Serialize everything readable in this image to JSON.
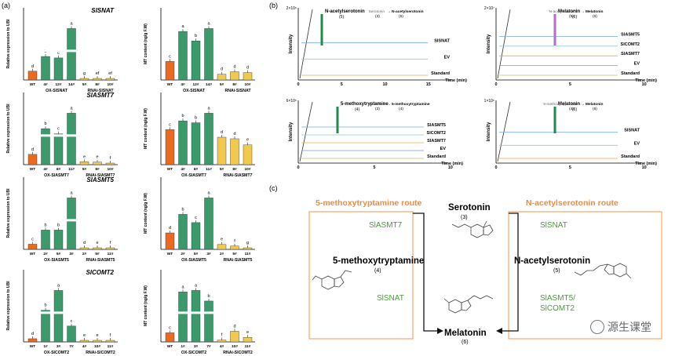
{
  "panel_labels": {
    "a": "(a)",
    "b": "(b)",
    "c": "(c)"
  },
  "colors": {
    "wt": "#ec6a1f",
    "ox": "#3a9a6c",
    "rnai": "#f2c94c",
    "route": "#f08a3c",
    "enzyme": "#4c9a3b"
  },
  "panel_a": {
    "ylabel_rel": "Relative expression to UBI",
    "ylabel_mt": "MT content (ng/g F.W)",
    "rows": [
      {
        "gene": "SlSNAT",
        "ox_label": "OX-SlSNAT",
        "rnai_label": "RNAi-SlSNAT",
        "lines": [
          "WT",
          "4#",
          "12#",
          "14#",
          "5#",
          "8#",
          "10#"
        ],
        "expr_letters": [
          "d",
          "b",
          "c",
          "a",
          "g",
          "ef",
          "ef"
        ],
        "mt_letters": [
          "c",
          "a",
          "b",
          "a",
          "d",
          "d",
          "d"
        ]
      },
      {
        "gene": "SlASMT7",
        "ox_label": "OX-SlASMT7",
        "rnai_label": "RNAi-SlASMT7",
        "lines": [
          "WT",
          "4#",
          "6#",
          "11#",
          "5#",
          "8#",
          "10#"
        ],
        "expr_letters": [
          "d",
          "b",
          "c",
          "a",
          "e",
          "e",
          "f"
        ],
        "mt_letters": [
          "c",
          "b",
          "b",
          "a",
          "d",
          "d",
          "e"
        ]
      },
      {
        "gene": "SlASMT5",
        "ox_label": "OX-SlASMT5",
        "rnai_label": "RNAi-SlASMT5",
        "lines": [
          "WT",
          "2#",
          "5#",
          "3#",
          "2#",
          "5#",
          "11#"
        ],
        "expr_letters": [
          "c",
          "b",
          "b",
          "a",
          "d",
          "e",
          "f"
        ],
        "mt_letters": [
          "d",
          "b",
          "c",
          "a",
          "e",
          "f",
          "g"
        ]
      },
      {
        "gene": "SlCOMT2",
        "ox_label": "OX-SlCOMT2",
        "rnai_label": "RNAi-SlCOMT2",
        "lines": [
          "WT",
          "1#",
          "3#",
          "7#",
          "4#",
          "10#",
          "11#"
        ],
        "expr_letters": [
          "d",
          "b",
          "a",
          "c",
          "e",
          "e",
          "f"
        ],
        "mt_letters": [
          "c",
          "a",
          "a",
          "b",
          "f",
          "d",
          "e"
        ]
      }
    ]
  },
  "panel_b": {
    "xlabel": "Time (min)",
    "ylabel": "Intensity",
    "charts": [
      {
        "ymax": "2×10⁶",
        "peak": "N-acetylserotonin",
        "peak_num": "(5)",
        "reaction": [
          "Serotonin",
          "N-acetylserotonin"
        ],
        "reaction_nums": [
          "(3)",
          "(5)"
        ],
        "traces": [
          "SlSNAT",
          "EV",
          "Standard"
        ],
        "ticks": [
          "0",
          "5",
          "10",
          "15"
        ]
      },
      {
        "ymax": "2×10⁷",
        "peak": "Melatonin",
        "peak_num": "(6)",
        "reaction": [
          "N-acetylserotonin",
          "Melatonin"
        ],
        "reaction_nums": [
          "(5)",
          "(6)"
        ],
        "traces": [
          "SlASMT5",
          "SlCOMT2",
          "SlASMT7",
          "EV",
          "Standard"
        ],
        "ticks": [
          "0",
          "5",
          "10"
        ]
      },
      {
        "ymax": "6×10⁵",
        "peak": "5-methoxytryptamine",
        "peak_num": "(4)",
        "reaction": [
          "Serotonin",
          "5-methoxytryptamine"
        ],
        "reaction_nums": [
          "(3)",
          "(4)"
        ],
        "traces": [
          "SlASMT5",
          "SlCOMT2",
          "SlASMT7",
          "EV",
          "Standard"
        ],
        "ticks": [
          "0",
          "5",
          "10"
        ]
      },
      {
        "ymax": "1×10⁶",
        "peak": "Melatonin",
        "peak_num": "(6)",
        "reaction": [
          "5-methoxytryptamine",
          "Melatonin"
        ],
        "reaction_nums": [
          "(4)",
          "(6)"
        ],
        "traces": [
          "SlSNAT",
          "EV",
          "Standard"
        ],
        "ticks": [
          "0",
          "5",
          "10"
        ]
      }
    ]
  },
  "panel_c": {
    "left_route": "5-methoxytryptamine route",
    "right_route": "N-acetylserotonin route",
    "serotonin": "Serotonin",
    "serotonin_num": "(3)",
    "mt5": "5-methoxytryptamine",
    "mt5_num": "(4)",
    "nas": "N-acetylserotonin",
    "nas_num": "(5)",
    "melatonin": "Melatonin",
    "melatonin_num": "(6)",
    "enz_left_top": "SlASMT7",
    "enz_left_bottom": "SlSNAT",
    "enz_right_top": "SlSNAT",
    "enz_right_bottom_1": "SlASMT5/",
    "enz_right_bottom_2": "SlCOMT2",
    "watermark": "源生课堂"
  },
  "chart_data": [
    {
      "type": "bar",
      "title": "SlSNAT",
      "categories": [
        "WT",
        "4#",
        "12#",
        "14#",
        "5#",
        "8#",
        "10#"
      ],
      "series": [
        {
          "name": "",
          "values": [
            0.012,
            0.032,
            0.03,
            0.07,
            0.0012,
            0.0018,
            0.0016
          ]
        }
      ],
      "ylabel": "Relative expression to UBI"
    },
    {
      "type": "bar",
      "title": "",
      "categories": [
        "WT",
        "4#",
        "12#",
        "14#",
        "5#",
        "8#",
        "10#"
      ],
      "series": [
        {
          "name": "",
          "values": [
            4.5,
            11.8,
            9.5,
            12.5,
            1.4,
            2.0,
            1.8
          ]
        }
      ],
      "ylabel": "MT content (ng/g F.W)"
    },
    {
      "type": "bar",
      "title": "SlASMT7",
      "categories": [
        "WT",
        "4#",
        "6#",
        "11#",
        "5#",
        "8#",
        "10#"
      ],
      "series": [
        {
          "name": "",
          "values": [
            0.01,
            0.035,
            0.03,
            0.05,
            0.0028,
            0.0025,
            0.0015
          ]
        }
      ],
      "ylabel": "Relative expression to UBI"
    },
    {
      "type": "bar",
      "title": "",
      "categories": [
        "WT",
        "4#",
        "6#",
        "11#",
        "5#",
        "8#",
        "10#"
      ],
      "series": [
        {
          "name": "",
          "values": [
            9.2,
            11.5,
            11.0,
            13.5,
            7.2,
            6.8,
            5.2
          ]
        }
      ],
      "ylabel": "MT content (ng/g F.W)"
    },
    {
      "type": "bar",
      "title": "SlASMT5",
      "categories": [
        "WT",
        "2#",
        "5#",
        "3#",
        "2#",
        "5#",
        "11#"
      ],
      "series": [
        {
          "name": "",
          "values": [
            0.012,
            0.045,
            0.045,
            0.12,
            0.003,
            0.0018,
            0.0006
          ]
        }
      ],
      "ylabel": "Relative expression to UBI"
    },
    {
      "type": "bar",
      "title": "",
      "categories": [
        "WT",
        "2#",
        "5#",
        "3#",
        "2#",
        "5#",
        "11#"
      ],
      "series": [
        {
          "name": "",
          "values": [
            4.0,
            8.5,
            6.5,
            12.5,
            1.2,
            0.8,
            0.3
          ]
        }
      ],
      "ylabel": "MT content (ng/g F.W)"
    },
    {
      "type": "bar",
      "title": "SlCOMT2",
      "categories": [
        "WT",
        "1#",
        "3#",
        "7#",
        "4#",
        "10#",
        "11#"
      ],
      "series": [
        {
          "name": "",
          "values": [
            0.004,
            0.04,
            0.065,
            0.02,
            0.0006,
            0.0009,
            0.0004
          ]
        }
      ],
      "ylabel": "Relative expression to UBI"
    },
    {
      "type": "bar",
      "title": "",
      "categories": [
        "WT",
        "1#",
        "3#",
        "7#",
        "4#",
        "10#",
        "11#"
      ],
      "series": [
        {
          "name": "",
          "values": [
            3.0,
            16.5,
            17.0,
            13.5,
            0.6,
            3.5,
            1.5
          ]
        }
      ],
      "ylabel": "MT content (ng/g F.W)"
    }
  ]
}
